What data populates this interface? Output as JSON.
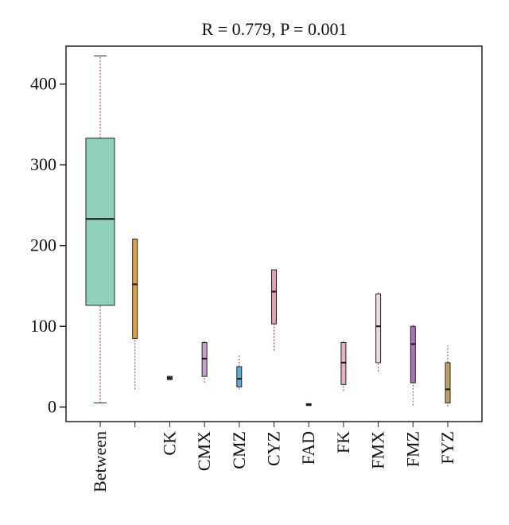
{
  "chart_data": {
    "type": "box",
    "title": "R = 0.779, P = 0.001",
    "categories": [
      "Between",
      null,
      "CK",
      "CMX",
      "CMZ",
      "CYZ",
      "FAD",
      "FK",
      "FMX",
      "FMZ",
      "FYZ"
    ],
    "boxes": [
      {
        "min": 5,
        "q1": 126,
        "median": 233,
        "q3": 333,
        "max": 435,
        "color": "#8fd1bb"
      },
      {
        "min": 22,
        "q1": 85,
        "median": 152,
        "q3": 208,
        "max": 208,
        "color": "#e0a040"
      },
      {
        "min": 33,
        "q1": 34,
        "median": 36,
        "q3": 38,
        "max": 39,
        "color": "#6b8fd6"
      },
      {
        "min": 30,
        "q1": 38,
        "median": 60,
        "q3": 80,
        "max": 82,
        "color": "#c9a0d0"
      },
      {
        "min": 22,
        "q1": 25,
        "median": 35,
        "q3": 50,
        "max": 64,
        "color": "#5ab0d8"
      },
      {
        "min": 70,
        "q1": 103,
        "median": 143,
        "q3": 170,
        "max": 170,
        "color": "#d9a3b0"
      },
      {
        "min": 1,
        "q1": 2,
        "median": 3,
        "q3": 4,
        "max": 5,
        "color": "#888888"
      },
      {
        "min": 20,
        "q1": 28,
        "median": 55,
        "q3": 80,
        "max": 82,
        "color": "#e8b0c8"
      },
      {
        "min": 44,
        "q1": 55,
        "median": 100,
        "q3": 140,
        "max": 142,
        "color": "#f0d8e0"
      },
      {
        "min": 2,
        "q1": 30,
        "median": 78,
        "q3": 100,
        "max": 103,
        "color": "#b070c0"
      },
      {
        "min": 1,
        "q1": 5,
        "median": 22,
        "q3": 55,
        "max": 76,
        "color": "#c0a060"
      }
    ],
    "ylim": [
      -18,
      447
    ],
    "yticks": [
      0,
      100,
      200,
      300,
      400
    ]
  }
}
